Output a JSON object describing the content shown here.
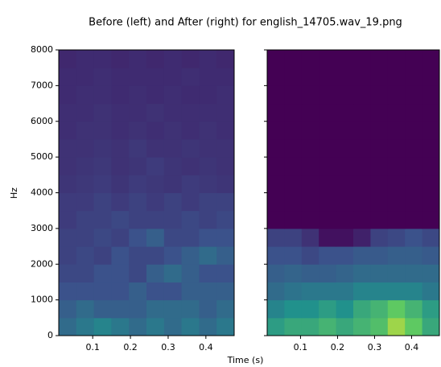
{
  "chart_data": {
    "type": "heatmap",
    "title": "Before (left) and After (right) for english_14705.wav_19.png",
    "xlabel": "Time (s)",
    "ylabel": "Hz",
    "colormap": "viridis",
    "xlim": [
      0.01,
      0.475
    ],
    "xticks": [
      0.1,
      0.2,
      0.3,
      0.4
    ],
    "ylim": [
      0,
      8000
    ],
    "yticks": [
      0,
      1000,
      2000,
      3000,
      4000,
      5000,
      6000,
      7000,
      8000
    ],
    "panels": [
      {
        "z": [
          [
            0.35,
            0.4,
            0.45,
            0.4,
            0.35,
            0.4,
            0.35,
            0.4,
            0.35,
            0.4
          ],
          [
            0.3,
            0.35,
            0.3,
            0.3,
            0.3,
            0.35,
            0.35,
            0.35,
            0.3,
            0.35
          ],
          [
            0.25,
            0.25,
            0.25,
            0.25,
            0.3,
            0.25,
            0.25,
            0.3,
            0.3,
            0.3
          ],
          [
            0.22,
            0.22,
            0.25,
            0.25,
            0.22,
            0.3,
            0.35,
            0.3,
            0.25,
            0.25
          ],
          [
            0.2,
            0.22,
            0.2,
            0.25,
            0.22,
            0.22,
            0.25,
            0.3,
            0.35,
            0.3
          ],
          [
            0.2,
            0.2,
            0.22,
            0.2,
            0.25,
            0.3,
            0.22,
            0.22,
            0.25,
            0.25
          ],
          [
            0.18,
            0.2,
            0.2,
            0.22,
            0.2,
            0.2,
            0.2,
            0.22,
            0.2,
            0.22
          ],
          [
            0.18,
            0.18,
            0.2,
            0.18,
            0.2,
            0.18,
            0.2,
            0.18,
            0.2,
            0.2
          ],
          [
            0.16,
            0.17,
            0.18,
            0.16,
            0.18,
            0.17,
            0.16,
            0.18,
            0.17,
            0.16
          ],
          [
            0.15,
            0.16,
            0.17,
            0.15,
            0.16,
            0.18,
            0.16,
            0.15,
            0.16,
            0.15
          ],
          [
            0.15,
            0.15,
            0.16,
            0.15,
            0.17,
            0.15,
            0.15,
            0.16,
            0.15,
            0.15
          ],
          [
            0.14,
            0.15,
            0.15,
            0.14,
            0.15,
            0.14,
            0.15,
            0.14,
            0.15,
            0.14
          ],
          [
            0.14,
            0.14,
            0.15,
            0.14,
            0.14,
            0.15,
            0.14,
            0.14,
            0.14,
            0.14
          ],
          [
            0.13,
            0.14,
            0.14,
            0.13,
            0.14,
            0.13,
            0.14,
            0.13,
            0.13,
            0.14
          ],
          [
            0.13,
            0.13,
            0.14,
            0.13,
            0.13,
            0.13,
            0.13,
            0.14,
            0.13,
            0.13
          ],
          [
            0.12,
            0.13,
            0.13,
            0.12,
            0.13,
            0.12,
            0.13,
            0.12,
            0.13,
            0.12
          ]
        ]
      },
      {
        "z": [
          [
            0.55,
            0.6,
            0.6,
            0.65,
            0.6,
            0.65,
            0.7,
            0.85,
            0.75,
            0.6
          ],
          [
            0.45,
            0.5,
            0.5,
            0.55,
            0.5,
            0.6,
            0.65,
            0.75,
            0.65,
            0.55
          ],
          [
            0.35,
            0.38,
            0.4,
            0.4,
            0.4,
            0.45,
            0.45,
            0.45,
            0.45,
            0.4
          ],
          [
            0.3,
            0.32,
            0.3,
            0.3,
            0.32,
            0.35,
            0.35,
            0.35,
            0.35,
            0.35
          ],
          [
            0.25,
            0.25,
            0.22,
            0.25,
            0.25,
            0.28,
            0.28,
            0.3,
            0.3,
            0.28
          ],
          [
            0.2,
            0.2,
            0.15,
            0.05,
            0.05,
            0.1,
            0.2,
            0.22,
            0.25,
            0.22
          ],
          [
            0,
            0,
            0,
            0,
            0,
            0,
            0,
            0,
            0,
            0
          ],
          [
            0,
            0,
            0,
            0,
            0,
            0,
            0,
            0,
            0,
            0
          ],
          [
            0,
            0,
            0,
            0,
            0,
            0,
            0,
            0,
            0,
            0
          ],
          [
            0,
            0,
            0,
            0,
            0,
            0,
            0,
            0,
            0,
            0
          ],
          [
            0,
            0,
            0,
            0,
            0,
            0,
            0,
            0,
            0,
            0
          ],
          [
            0,
            0,
            0,
            0,
            0,
            0,
            0,
            0,
            0,
            0
          ],
          [
            0,
            0,
            0,
            0,
            0,
            0,
            0,
            0,
            0,
            0
          ],
          [
            0,
            0,
            0,
            0,
            0,
            0,
            0,
            0,
            0,
            0
          ],
          [
            0,
            0,
            0,
            0,
            0,
            0,
            0,
            0,
            0,
            0
          ],
          [
            0,
            0,
            0,
            0,
            0,
            0,
            0,
            0,
            0,
            0
          ]
        ]
      }
    ]
  }
}
